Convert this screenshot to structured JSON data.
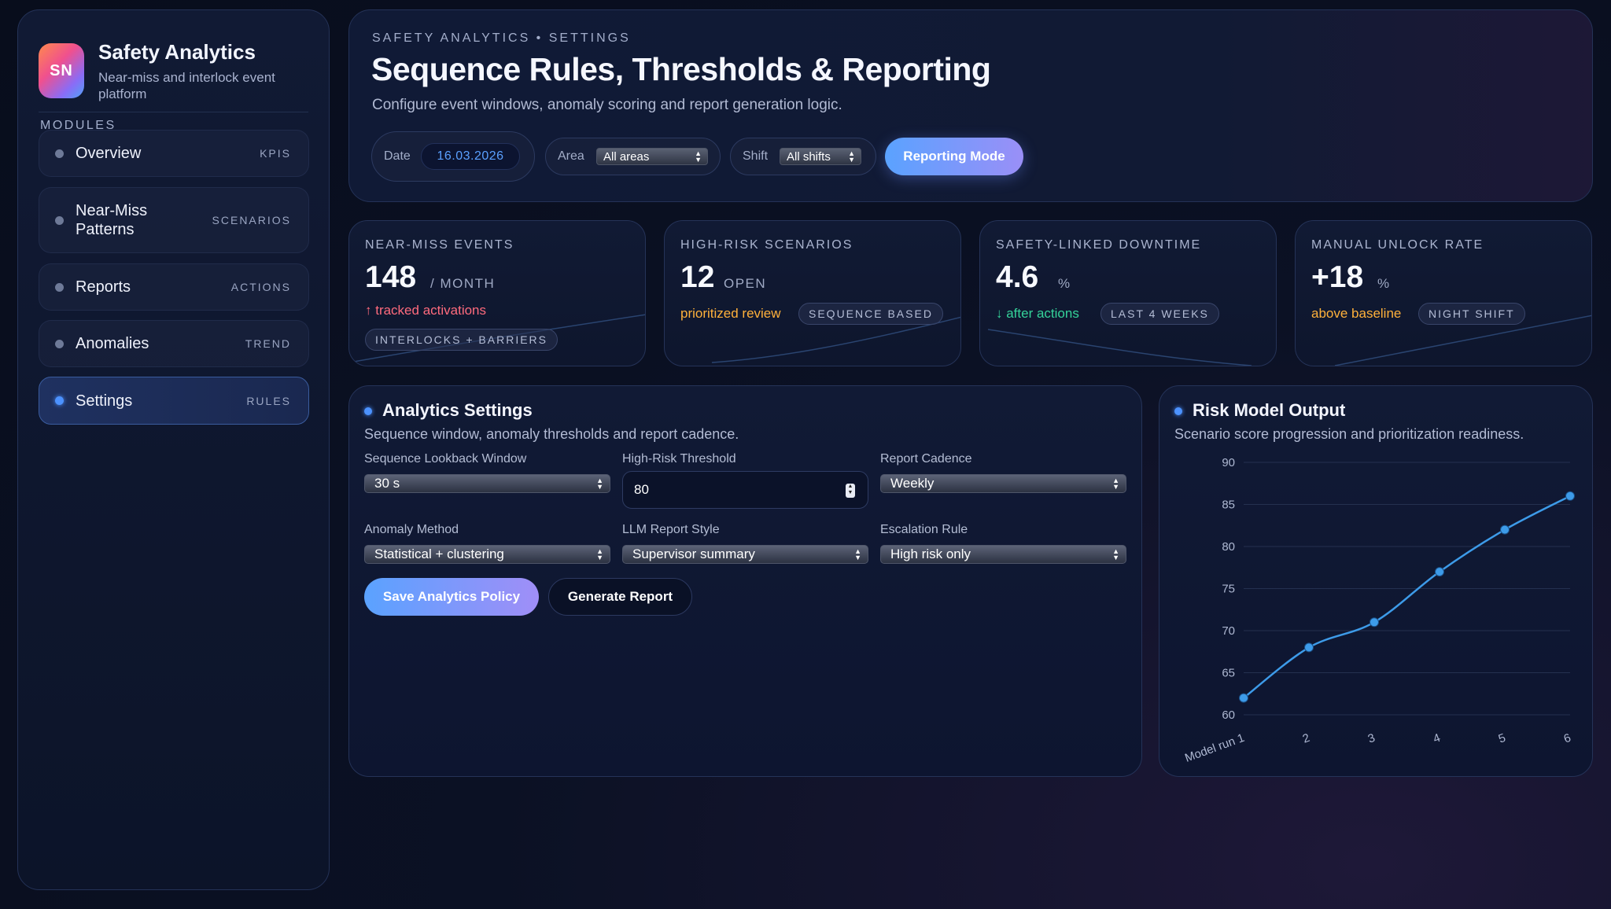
{
  "brand": {
    "initials": "SN",
    "title": "Safety Analytics",
    "subtitle": "Near-miss and interlock event platform"
  },
  "sidebar": {
    "section_label": "MODULES",
    "items": [
      {
        "label": "Overview",
        "tag": "KPIS",
        "active": false
      },
      {
        "label": "Near-Miss Patterns",
        "tag": "SCENARIOS",
        "active": false
      },
      {
        "label": "Reports",
        "tag": "ACTIONS",
        "active": false
      },
      {
        "label": "Anomalies",
        "tag": "TREND",
        "active": false
      },
      {
        "label": "Settings",
        "tag": "RULES",
        "active": true
      }
    ]
  },
  "header": {
    "breadcrumb": "SAFETY ANALYTICS • SETTINGS",
    "title": "Sequence Rules, Thresholds & Reporting",
    "subtitle": "Configure event windows, anomaly scoring and report generation logic.",
    "filters": {
      "date_label": "Date",
      "date_value": "16.03.2026",
      "area_label": "Area",
      "area_value": "All areas",
      "shift_label": "Shift",
      "shift_value": "All shifts"
    },
    "mode_button": "Reporting Mode"
  },
  "kpis": [
    {
      "label": "NEAR-MISS EVENTS",
      "value": "148",
      "unit": "/ MONTH",
      "note": "↑ tracked activations",
      "note_color": "#ff6b7d",
      "chip": "INTERLOCKS + BARRIERS"
    },
    {
      "label": "HIGH-RISK SCENARIOS",
      "value": "12",
      "unit": "OPEN",
      "note": "prioritized review",
      "note_color": "#ffb13b",
      "chip": "SEQUENCE BASED"
    },
    {
      "label": "SAFETY-LINKED DOWNTIME",
      "value": "4.6",
      "unit": "%",
      "note": "↓ after actions",
      "note_color": "#35d39a",
      "chip": "LAST 4 WEEKS"
    },
    {
      "label": "MANUAL UNLOCK RATE",
      "value": "+18",
      "unit": "%",
      "note": "above baseline",
      "note_color": "#ffb13b",
      "chip": "NIGHT SHIFT"
    }
  ],
  "settings_panel": {
    "title": "Analytics Settings",
    "subtitle": "Sequence window, anomaly thresholds and report cadence.",
    "fields": {
      "lookback_label": "Sequence Lookback Window",
      "lookback_value": "30 s",
      "threshold_label": "High-Risk Threshold",
      "threshold_value": "80",
      "cadence_label": "Report Cadence",
      "cadence_value": "Weekly",
      "method_label": "Anomaly Method",
      "method_value": "Statistical + clustering",
      "style_label": "LLM Report Style",
      "style_value": "Supervisor summary",
      "escalation_label": "Escalation Rule",
      "escalation_value": "High risk only"
    },
    "save_button": "Save Analytics Policy",
    "generate_button": "Generate Report"
  },
  "risk_panel": {
    "title": "Risk Model Output",
    "subtitle": "Scenario score progression and prioritization readiness."
  },
  "colors": {
    "accent": "#4c92ff",
    "line": "#3d9be9",
    "danger": "#ff6b7d",
    "warning": "#ffb13b",
    "success": "#35d39a"
  },
  "chart_data": {
    "type": "line",
    "title": "",
    "xlabel": "",
    "ylabel": "",
    "categories": [
      "Model run 1",
      "2",
      "3",
      "4",
      "5",
      "6"
    ],
    "values": [
      62,
      68,
      71,
      77,
      82,
      86
    ],
    "ylim": [
      60,
      90
    ],
    "yticks": [
      60,
      65,
      70,
      75,
      80,
      85,
      90
    ],
    "grid": true,
    "legend": "none"
  }
}
